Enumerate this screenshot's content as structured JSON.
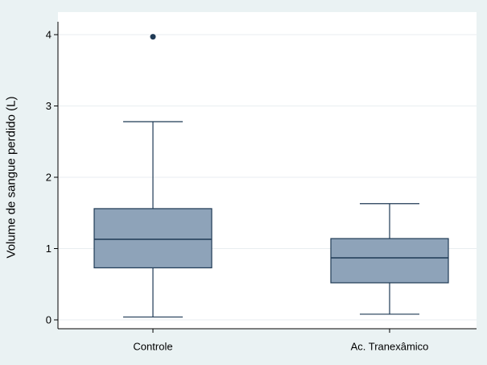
{
  "chart_data": {
    "type": "boxplot",
    "ylabel": "Volume de sangue perdido (L)",
    "xlabel": "",
    "ylim": [
      0,
      4.2
    ],
    "yticks": [
      "0",
      "1",
      "2",
      "3",
      "4"
    ],
    "grid": true,
    "colors": {
      "box_fill": "#8ea3b9",
      "box_stroke": "#1f3a55",
      "outlier": "#1f3a55",
      "background": "#eaf2f3",
      "plot_bg": "#ffffff",
      "grid": "#e9eef0"
    },
    "groups": [
      {
        "category": "Controle",
        "whisker_low": 0.04,
        "q1": 0.73,
        "median": 1.13,
        "q3": 1.56,
        "whisker_high": 2.78,
        "outliers": [
          3.97
        ]
      },
      {
        "category": "Ac. Tranexâmico",
        "whisker_low": 0.08,
        "q1": 0.52,
        "median": 0.87,
        "q3": 1.14,
        "whisker_high": 1.63,
        "outliers": []
      }
    ]
  }
}
